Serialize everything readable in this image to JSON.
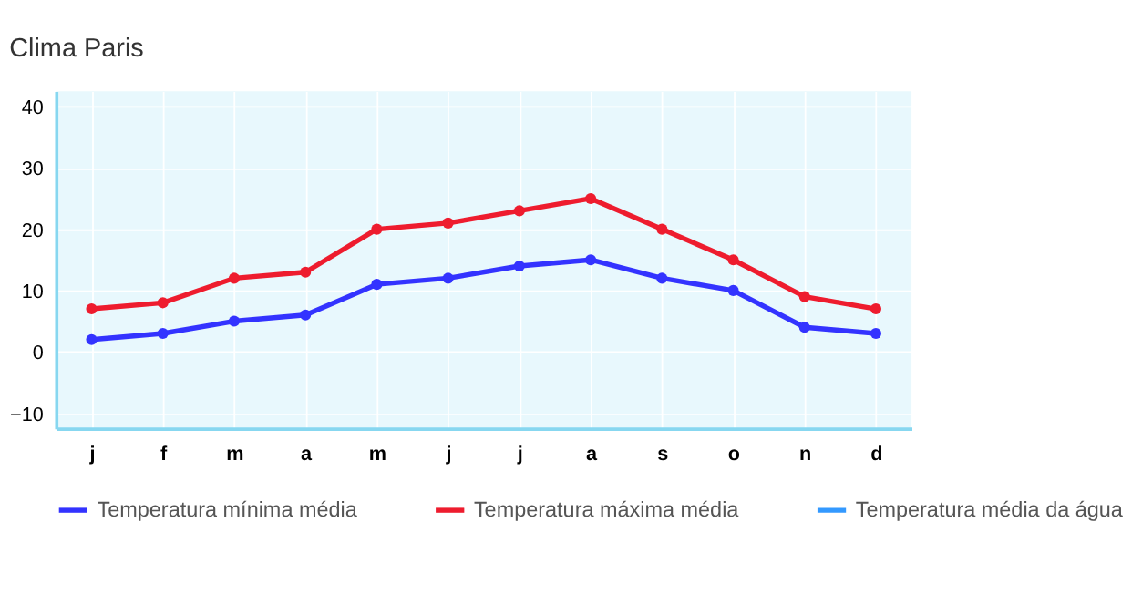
{
  "chart_data": {
    "type": "line",
    "title": "Clima Paris",
    "categories": [
      "j",
      "f",
      "m",
      "a",
      "m",
      "j",
      "j",
      "a",
      "s",
      "o",
      "n",
      "d"
    ],
    "series": [
      {
        "name": "Temperatura mínima média",
        "color": "#3333ff",
        "values": [
          2,
          3,
          5,
          6,
          11,
          12,
          14,
          15,
          12,
          10,
          4,
          3
        ]
      },
      {
        "name": "Temperatura máxima média",
        "color": "#ee1c2e",
        "values": [
          7,
          8,
          12,
          13,
          20,
          21,
          23,
          25,
          20,
          15,
          9,
          7
        ]
      },
      {
        "name": "Temperatura média da água",
        "color": "#3399ff",
        "values": [
          null,
          null,
          null,
          null,
          null,
          null,
          null,
          null,
          null,
          null,
          null,
          null
        ]
      }
    ],
    "ylim": [
      -12.5,
      42.5
    ],
    "yticks": [
      -10,
      0,
      10,
      20,
      30,
      40
    ],
    "grid": true,
    "legend": "bottom",
    "marker": "circle",
    "line_style": "solid"
  }
}
